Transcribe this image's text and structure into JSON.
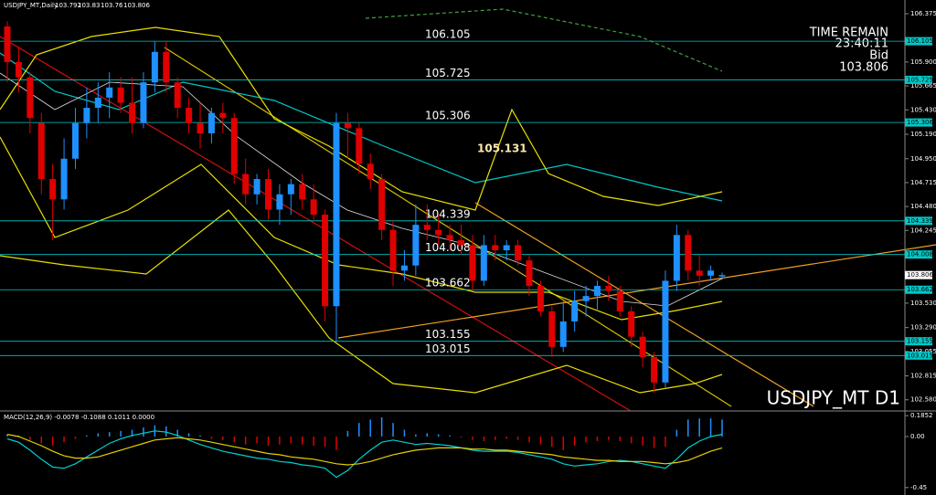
{
  "chart_data": [
    {
      "type": "candlestick",
      "symbol": "USDJPY_MT,Daily",
      "chart_label": "USDJPY_MT D1",
      "timer": {
        "title": "TIME REMAIN",
        "time": "23:40:11",
        "bid_label": "Bid"
      },
      "annotation": 105.131,
      "up_color": "#1e90ff",
      "down_color": "#e00000",
      "level_color": "#00c8c8",
      "ylim": [
        102.47,
        106.51
      ],
      "yticks": [
        106.375,
        {
          "value": 105.9,
          "label": "105.900"
        },
        105.665,
        {
          "value": 105.43,
          "label": "105.430"
        },
        {
          "value": 105.19,
          "label": "105.190"
        },
        {
          "value": 104.95,
          "label": "104.950"
        },
        104.715,
        {
          "value": 104.48,
          "label": "104.480"
        },
        104.245,
        {
          "value": 103.53,
          "label": "103.530"
        },
        {
          "value": 103.29,
          "label": "103.290"
        },
        103.055,
        102.815,
        {
          "value": 102.58,
          "label": "102.580"
        }
      ],
      "levels": [
        106.105,
        105.725,
        105.306,
        104.339,
        104.008,
        103.662,
        103.155,
        103.015
      ],
      "ohlc": [
        [
          106.25,
          106.3,
          105.7,
          105.9
        ],
        [
          105.9,
          106.05,
          105.6,
          105.75
        ],
        [
          105.75,
          105.8,
          105.2,
          105.35
        ],
        [
          105.3,
          105.4,
          104.6,
          104.75
        ],
        [
          104.75,
          104.9,
          104.15,
          104.55
        ],
        [
          104.55,
          105.15,
          104.45,
          104.95
        ],
        [
          104.95,
          105.45,
          104.85,
          105.3
        ],
        [
          105.3,
          105.65,
          105.15,
          105.45
        ],
        [
          105.45,
          105.7,
          105.3,
          105.55
        ],
        [
          105.55,
          105.8,
          105.35,
          105.65
        ],
        [
          105.65,
          105.75,
          105.4,
          105.5
        ],
        [
          105.5,
          105.75,
          105.2,
          105.3
        ],
        [
          105.3,
          105.8,
          105.25,
          105.7
        ],
        [
          105.7,
          106.1,
          105.6,
          106.0
        ],
        [
          106.0,
          106.1,
          105.6,
          105.7
        ],
        [
          105.7,
          105.75,
          105.35,
          105.45
        ],
        [
          105.45,
          105.55,
          105.2,
          105.3
        ],
        [
          105.3,
          105.5,
          105.05,
          105.2
        ],
        [
          105.2,
          105.45,
          105.1,
          105.4
        ],
        [
          105.4,
          105.5,
          105.2,
          105.35
        ],
        [
          105.35,
          105.4,
          104.7,
          104.8
        ],
        [
          104.8,
          104.95,
          104.5,
          104.6
        ],
        [
          104.6,
          104.8,
          104.5,
          104.75
        ],
        [
          104.75,
          104.85,
          104.35,
          104.45
        ],
        [
          104.45,
          104.7,
          104.3,
          104.6
        ],
        [
          104.6,
          104.75,
          104.4,
          104.7
        ],
        [
          104.7,
          104.8,
          104.45,
          104.55
        ],
        [
          104.55,
          104.7,
          104.35,
          104.4
        ],
        [
          104.4,
          104.45,
          103.35,
          103.5
        ],
        [
          103.5,
          105.4,
          103.15,
          105.3
        ],
        [
          105.3,
          105.4,
          104.95,
          105.25
        ],
        [
          105.25,
          105.3,
          104.8,
          104.9
        ],
        [
          104.9,
          105.0,
          104.65,
          104.75
        ],
        [
          104.75,
          104.8,
          104.15,
          104.25
        ],
        [
          104.25,
          104.35,
          103.7,
          103.85
        ],
        [
          103.85,
          104.05,
          103.75,
          103.9
        ],
        [
          103.9,
          104.5,
          103.8,
          104.3
        ],
        [
          104.3,
          104.5,
          104.15,
          104.25
        ],
        [
          104.25,
          104.4,
          104.1,
          104.2
        ],
        [
          104.2,
          104.3,
          104.05,
          104.15
        ],
        [
          104.15,
          104.3,
          104.0,
          104.1
        ],
        [
          104.1,
          104.2,
          103.65,
          103.75
        ],
        [
          103.75,
          104.2,
          103.7,
          104.1
        ],
        [
          104.1,
          104.2,
          103.95,
          104.05
        ],
        [
          104.05,
          104.15,
          103.95,
          104.1
        ],
        [
          104.1,
          104.15,
          103.9,
          103.95
        ],
        [
          103.95,
          104.0,
          103.6,
          103.7
        ],
        [
          103.7,
          103.75,
          103.4,
          103.45
        ],
        [
          103.45,
          103.5,
          103.0,
          103.1
        ],
        [
          103.1,
          103.55,
          103.05,
          103.35
        ],
        [
          103.35,
          103.65,
          103.25,
          103.55
        ],
        [
          103.55,
          103.7,
          103.4,
          103.6
        ],
        [
          103.6,
          103.75,
          103.45,
          103.7
        ],
        [
          103.7,
          103.8,
          103.55,
          103.65
        ],
        [
          103.65,
          103.7,
          103.4,
          103.45
        ],
        [
          103.45,
          103.5,
          103.1,
          103.2
        ],
        [
          103.2,
          103.25,
          102.9,
          103.0
        ],
        [
          103.0,
          103.05,
          102.65,
          102.75
        ],
        [
          102.75,
          103.85,
          102.7,
          103.75
        ],
        [
          103.75,
          104.3,
          103.65,
          104.2
        ],
        [
          104.2,
          104.25,
          103.75,
          103.85
        ],
        [
          103.85,
          104.0,
          103.7,
          103.8
        ],
        [
          103.8,
          103.9,
          103.75,
          103.85
        ],
        [
          103.792,
          103.83,
          103.76,
          103.806
        ]
      ]
    },
    {
      "type": "macd",
      "title": "MACD(12,26,9) -0.0078 -0.1088 0.1011 0.0000",
      "up_color": "#1e90ff",
      "down_color": "#e00000",
      "ylim": [
        -0.516,
        0.21
      ],
      "yticks": [
        0.1852,
        {
          "value": 0,
          "label": "0.00"
        },
        -0.45
      ],
      "values": [
        0.02,
        0.01,
        -0.03,
        -0.06,
        -0.08,
        -0.05,
        -0.02,
        0.01,
        0.03,
        0.04,
        0.05,
        0.06,
        0.08,
        0.1,
        0.09,
        0.06,
        0.03,
        0.01,
        -0.02,
        -0.03,
        -0.05,
        -0.07,
        -0.06,
        -0.08,
        -0.07,
        -0.06,
        -0.07,
        -0.08,
        -0.09,
        -0.12,
        0.05,
        0.12,
        0.15,
        0.17,
        0.12,
        0.06,
        0.02,
        0.03,
        0.02,
        0.01,
        -0.01,
        -0.03,
        -0.04,
        -0.03,
        -0.02,
        -0.03,
        -0.05,
        -0.07,
        -0.09,
        -0.12,
        -0.08,
        -0.05,
        -0.04,
        -0.03,
        -0.04,
        -0.06,
        -0.08,
        -0.1,
        -0.09,
        0.06,
        0.15,
        0.16,
        0.16,
        0.15
      ],
      "lines": [
        {
          "color": "#00d0d0",
          "values": [
            -0.02,
            -0.05,
            -0.12,
            -0.2,
            -0.27,
            -0.28,
            -0.24,
            -0.18,
            -0.12,
            -0.06,
            -0.02,
            0.01,
            0.03,
            0.05,
            0.04,
            0.01,
            -0.03,
            -0.07,
            -0.1,
            -0.13,
            -0.15,
            -0.17,
            -0.19,
            -0.2,
            -0.22,
            -0.23,
            -0.25,
            -0.26,
            -0.28,
            -0.36,
            -0.3,
            -0.2,
            -0.12,
            -0.05,
            -0.03,
            -0.05,
            -0.07,
            -0.06,
            -0.07,
            -0.08,
            -0.1,
            -0.12,
            -0.13,
            -0.13,
            -0.13,
            -0.14,
            -0.16,
            -0.18,
            -0.2,
            -0.24,
            -0.26,
            -0.25,
            -0.24,
            -0.22,
            -0.21,
            -0.22,
            -0.24,
            -0.26,
            -0.28,
            -0.2,
            -0.1,
            -0.04,
            0.0,
            0.02
          ]
        },
        {
          "color": "#e8d000",
          "values": [
            0.02,
            0.0,
            -0.04,
            -0.08,
            -0.13,
            -0.17,
            -0.19,
            -0.19,
            -0.18,
            -0.15,
            -0.12,
            -0.09,
            -0.06,
            -0.03,
            -0.02,
            -0.01,
            -0.02,
            -0.03,
            -0.05,
            -0.07,
            -0.09,
            -0.11,
            -0.13,
            -0.15,
            -0.16,
            -0.18,
            -0.19,
            -0.2,
            -0.22,
            -0.24,
            -0.25,
            -0.24,
            -0.22,
            -0.19,
            -0.16,
            -0.14,
            -0.12,
            -0.11,
            -0.1,
            -0.1,
            -0.1,
            -0.11,
            -0.11,
            -0.12,
            -0.12,
            -0.13,
            -0.14,
            -0.15,
            -0.16,
            -0.18,
            -0.19,
            -0.2,
            -0.21,
            -0.21,
            -0.22,
            -0.22,
            -0.22,
            -0.23,
            -0.24,
            -0.23,
            -0.21,
            -0.17,
            -0.13,
            -0.1
          ]
        }
      ]
    }
  ]
}
